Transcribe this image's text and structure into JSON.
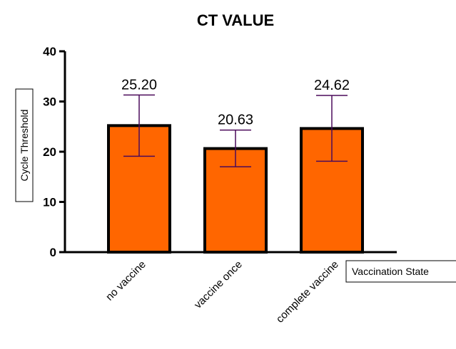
{
  "chart_data": {
    "type": "bar",
    "title": "CT VALUE",
    "ylabel": "Cycle Threshold",
    "xlabel": "Vaccination State",
    "categories": [
      "no vaccine",
      "vaccine once",
      "complete vaccine"
    ],
    "values": [
      25.2,
      20.63,
      24.62
    ],
    "data_labels": [
      "25.20",
      "20.63",
      "24.62"
    ],
    "error_bars": [
      {
        "low": 19.1,
        "high": 31.3
      },
      {
        "low": 17.0,
        "high": 24.3
      },
      {
        "low": 18.1,
        "high": 31.2
      }
    ],
    "ylim": [
      0,
      40
    ],
    "yticks": [
      0,
      10,
      20,
      30,
      40
    ],
    "grid": false,
    "legend": "none",
    "colors": {
      "bar_fill": "#FF6600",
      "bar_edge": "#000000",
      "error_bar": "#4B0A5A"
    }
  }
}
